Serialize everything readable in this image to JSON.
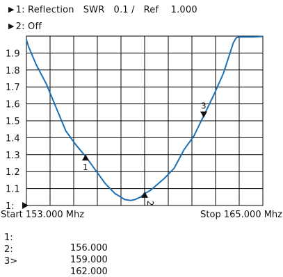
{
  "header": {
    "line1_marker": "▶",
    "line1": "1: Reflection   SWR   0.1 /   Ref    1.000",
    "line2_marker": "▶",
    "line2": "2: Off"
  },
  "axis": {
    "start_label": "Start 153.000 Mhz",
    "stop_label": "Stop 165.000 Mhz",
    "y_tick_labels": [
      "1.9",
      "1.8",
      "1.7",
      "1.6",
      "1.5",
      "1.4",
      "1.3",
      "1.2",
      "1.1",
      "1:"
    ]
  },
  "markers": [
    {
      "id": "1:",
      "freq": "156.000",
      "label": "1"
    },
    {
      "id": "2:",
      "freq": "159.000",
      "label": "2"
    },
    {
      "id": "3>",
      "freq": "162.000",
      "label": "3"
    }
  ],
  "colors": {
    "trace": "#1b6fb5",
    "grid": "#000000",
    "background": "#ffffff"
  },
  "chart_data": {
    "type": "line",
    "xlim": [
      153.0,
      165.0
    ],
    "ylim": [
      1.0,
      2.0
    ],
    "grid": true,
    "series": [
      {
        "x": [
          153.0,
          153.1,
          153.5,
          154.0,
          154.5,
          155.0,
          155.5,
          156.0,
          156.5,
          157.0,
          157.5,
          158.0,
          158.3,
          158.5,
          158.8,
          159.0,
          159.3,
          159.6,
          160.0,
          160.5,
          161.0,
          161.5,
          162.0,
          162.5,
          163.0,
          163.5,
          163.65,
          163.8,
          164.5,
          165.0
        ],
        "y": [
          1.98,
          1.94,
          1.83,
          1.72,
          1.58,
          1.44,
          1.36,
          1.29,
          1.21,
          1.13,
          1.07,
          1.035,
          1.03,
          1.035,
          1.05,
          1.07,
          1.09,
          1.12,
          1.16,
          1.22,
          1.33,
          1.41,
          1.53,
          1.65,
          1.78,
          1.96,
          1.99,
          1.995,
          1.995,
          1.998
        ]
      }
    ],
    "markers": [
      {
        "label": "1",
        "x": 156.0,
        "y": 1.29
      },
      {
        "label": "2",
        "x": 159.0,
        "y": 1.07
      },
      {
        "label": "3",
        "x": 162.0,
        "y": 1.53
      }
    ]
  }
}
